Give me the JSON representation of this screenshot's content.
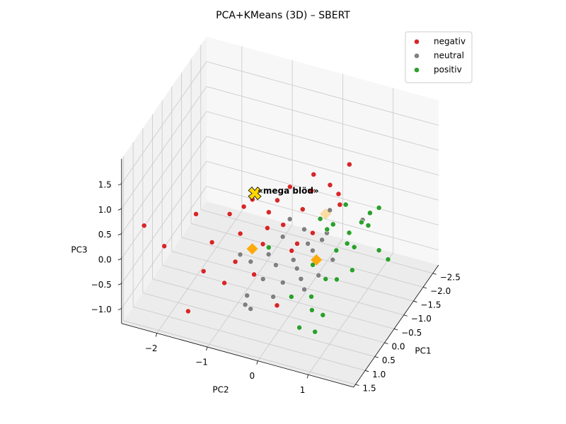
{
  "chart_data": {
    "type": "scatter3d",
    "title": "PCA+KMeans (3D) – SBERT",
    "xlabel": "PC1",
    "ylabel": "PC2",
    "zlabel": "PC3",
    "xlim": [
      -2.8,
      1.6
    ],
    "ylim": [
      -2.7,
      1.9
    ],
    "zlim": [
      -1.3,
      2.0
    ],
    "xticks": [
      {
        "value": -2.5,
        "label": "−2.5"
      },
      {
        "value": -2.0,
        "label": "−2.0"
      },
      {
        "value": -1.5,
        "label": "−1.5"
      },
      {
        "value": -1.0,
        "label": "−1.0"
      },
      {
        "value": -0.5,
        "label": "−0.5"
      },
      {
        "value": 0,
        "label": "0.0"
      },
      0.5,
      {
        "value": 1.0,
        "label": "1.0"
      },
      1.5
    ],
    "yticks": [
      {
        "value": -2,
        "label": "−2"
      },
      {
        "value": -1,
        "label": "−1"
      },
      0,
      1
    ],
    "zticks": [
      {
        "value": -1.0,
        "label": "−1.0"
      },
      {
        "value": -0.5,
        "label": "−0.5"
      },
      {
        "value": 0,
        "label": "0.0"
      },
      0.5,
      {
        "value": 1.0,
        "label": "1.0"
      },
      1.5
    ],
    "grid": true,
    "legend": "upper right",
    "series": [
      {
        "name": "negativ",
        "color": "#d62728",
        "x": [
          1.32,
          1.32,
          0.54,
          0.26,
          1.3,
          1.03,
          1.13,
          -0.08,
          -0.37,
          0.37,
          -0.46,
          -1.03,
          -1.63,
          -1.15,
          -0.49,
          0.31,
          0.75,
          0.98,
          0.97,
          -0.12,
          -0.25,
          -1.25,
          -0.31,
          0.29,
          -0.82,
          -0.16,
          -0.05,
          0.81,
          -0.46,
          -1.24
        ],
        "y": [
          -2.36,
          -1.96,
          -1.63,
          -1.07,
          -1.19,
          -0.88,
          -1.56,
          -0.92,
          -0.86,
          -0.28,
          -0.15,
          0.1,
          0.58,
          0.38,
          0.09,
          -0.84,
          -0.77,
          -0.31,
          0.14,
          -0.44,
          -0.32,
          0.51,
          0.05,
          -0.4,
          0.14,
          -0.17,
          0.04,
          -1.21,
          0.3,
          0.54
        ],
        "z": [
          0.6,
          0.3,
          0.6,
          0.6,
          0.0,
          -0.3,
          -1.0,
          0.6,
          0.6,
          0.6,
          1.0,
          1.0,
          1.0,
          0.8,
          0.6,
          0.3,
          0.0,
          0.0,
          -0.5,
          0.6,
          0.8,
          0.6,
          0.0,
          0.2,
          0.8,
          0.4,
          0.0,
          0.3,
          0.2,
          0.4
        ]
      },
      {
        "name": "neutral",
        "color": "#808080",
        "x": [
          0.77,
          0.76,
          0.69,
          0.59,
          0.38,
          -0.01,
          0.26,
          0.02,
          -0.27,
          -1.27,
          -1.14,
          -0.63,
          -0.55,
          -0.4,
          0.32,
          0.34,
          0.44,
          0.06,
          -0.09,
          -0.38,
          -0.88,
          0.12,
          0.1,
          -0.69,
          -0.65
        ],
        "y": [
          -0.53,
          -0.57,
          -0.49,
          -0.08,
          0.03,
          0.16,
          0.41,
          0.6,
          0.77,
          0.98,
          0.38,
          0.42,
          0.17,
          -0.27,
          -0.63,
          -0.83,
          -0.34,
          -0.23,
          0.06,
          0.33,
          0.42,
          0.29,
          -0.36,
          -0.24,
          0.06
        ],
        "z": [
          -0.6,
          -0.8,
          -0.9,
          -0.6,
          -0.4,
          -0.3,
          -0.5,
          -0.3,
          -0.1,
          0.2,
          0.3,
          0.0,
          -0.1,
          0.0,
          -0.2,
          -0.1,
          -0.4,
          -0.3,
          -0.2,
          -0.1,
          0.0,
          -0.4,
          -0.1,
          0.2,
          0.1
        ]
      },
      {
        "name": "positiv",
        "color": "#2ca02c",
        "x": [
          -1.62,
          -0.89,
          -1.39,
          -1.44,
          -1.07,
          -0.84,
          -1.3,
          -0.42,
          -0.01,
          0.52,
          0.7,
          0.7,
          0.58,
          0.42,
          0.07,
          0.59,
          0.04,
          -1.34,
          -0.94,
          -0.73,
          -0.43,
          -0.1,
          -0.68,
          -0.89,
          -0.8
        ],
        "y": [
          1.17,
          1.63,
          1.08,
          0.58,
          0.79,
          0.44,
          1.08,
          1.1,
          0.95,
          0.66,
          0.79,
          0.48,
          0.9,
          0.61,
          0.76,
          0.28,
          -0.38,
          0.93,
          1.43,
          0.88,
          0.78,
          0.44,
          1.04,
          0.54,
          0.32
        ],
        "z": [
          0.3,
          -0.2,
          0.3,
          0.3,
          0.0,
          0.1,
          0.1,
          -0.3,
          -0.3,
          -0.7,
          -1.0,
          -1.0,
          -0.7,
          -0.5,
          -0.3,
          -0.5,
          0.0,
          0.1,
          -0.1,
          0.0,
          0.0,
          -0.2,
          0.0,
          0.2,
          0.3
        ]
      }
    ],
    "centroids": {
      "color": "#ffa500",
      "x": [
        0.37,
        -0.13,
        -0.84
      ],
      "y": [
        -0.58,
        0.5,
        0.41
      ],
      "z": [
        0.1,
        -0.1,
        0.4
      ]
    },
    "highlight": {
      "label": "«mega blöd»",
      "color": "#ffd700",
      "x": 0.03,
      "y": -0.66,
      "z": 1.0
    }
  }
}
